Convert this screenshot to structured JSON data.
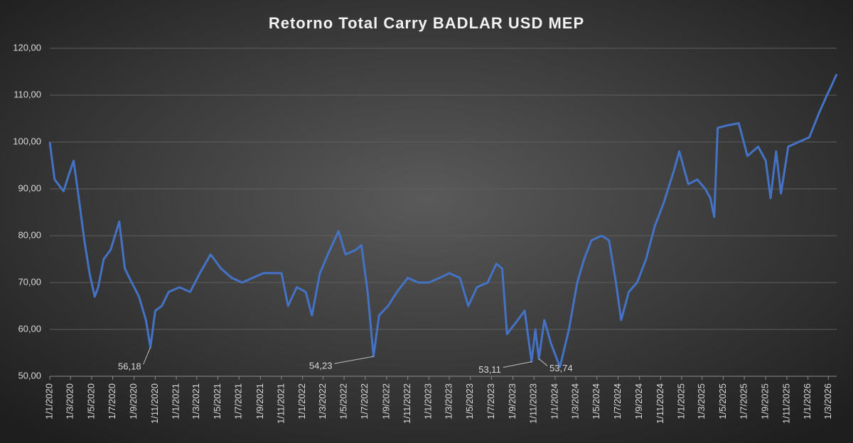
{
  "chart_data": {
    "type": "line",
    "title": "Retorno Total Carry BADLAR USD MEP",
    "x": [
      "2020-01-01",
      "2020-01-15",
      "2020-02-10",
      "2020-02-25",
      "2020-03-10",
      "2020-03-25",
      "2020-04-10",
      "2020-04-25",
      "2020-05-10",
      "2020-05-20",
      "2020-06-05",
      "2020-06-25",
      "2020-07-20",
      "2020-08-05",
      "2020-08-25",
      "2020-09-15",
      "2020-10-05",
      "2020-10-18",
      "2020-11-01",
      "2020-11-20",
      "2020-12-10",
      "2021-01-10",
      "2021-02-10",
      "2021-03-10",
      "2021-04-10",
      "2021-05-10",
      "2021-06-10",
      "2021-07-10",
      "2021-08-10",
      "2021-09-10",
      "2021-10-10",
      "2021-11-01",
      "2021-11-20",
      "2021-12-15",
      "2022-01-10",
      "2022-01-28",
      "2022-02-20",
      "2022-03-15",
      "2022-04-15",
      "2022-05-05",
      "2022-06-05",
      "2022-06-20",
      "2022-07-08",
      "2022-07-25",
      "2022-08-10",
      "2022-09-05",
      "2022-10-01",
      "2022-11-01",
      "2022-12-01",
      "2023-01-01",
      "2023-02-01",
      "2023-03-01",
      "2023-04-01",
      "2023-04-25",
      "2023-05-20",
      "2023-06-20",
      "2023-07-15",
      "2023-08-01",
      "2023-08-15",
      "2023-09-15",
      "2023-10-05",
      "2023-10-25",
      "2023-11-05",
      "2023-11-15",
      "2023-12-01",
      "2023-12-20",
      "2024-01-15",
      "2024-02-10",
      "2024-03-05",
      "2024-03-25",
      "2024-04-15",
      "2024-05-15",
      "2024-06-05",
      "2024-06-25",
      "2024-07-10",
      "2024-08-01",
      "2024-08-25",
      "2024-09-20",
      "2024-10-15",
      "2024-11-10",
      "2024-12-10",
      "2024-12-25",
      "2025-01-20",
      "2025-02-15",
      "2025-03-10",
      "2025-03-25",
      "2025-04-05",
      "2025-04-15",
      "2025-05-10",
      "2025-06-15",
      "2025-07-10",
      "2025-08-10",
      "2025-09-01",
      "2025-09-15",
      "2025-10-01",
      "2025-10-15",
      "2025-11-05",
      "2025-12-05",
      "2026-01-05",
      "2026-02-01",
      "2026-02-25",
      "2026-03-10",
      "2026-03-25"
    ],
    "series": [
      {
        "name": "Retorno Total Carry BADLAR USD MEP",
        "color": "#4472c4",
        "values": [
          100.0,
          92.0,
          89.5,
          93.0,
          96.0,
          88.0,
          79.0,
          72.0,
          67.0,
          69.0,
          75.0,
          77.0,
          83.0,
          73.0,
          70.0,
          67.0,
          62.0,
          56.18,
          64.0,
          65.0,
          68.0,
          69.0,
          68.0,
          72.0,
          76.0,
          73.0,
          71.0,
          70.0,
          71.0,
          72.0,
          72.0,
          72.0,
          65.0,
          69.0,
          68.0,
          63.0,
          72.0,
          76.0,
          81.0,
          76.0,
          77.0,
          78.0,
          68.0,
          54.23,
          63.0,
          65.0,
          68.0,
          71.0,
          70.0,
          70.0,
          71.0,
          72.0,
          71.0,
          65.0,
          69.0,
          70.0,
          74.0,
          73.0,
          59.0,
          62.0,
          64.0,
          53.11,
          60.0,
          53.74,
          62.0,
          57.0,
          52.0,
          60.0,
          70.0,
          75.0,
          79.0,
          80.0,
          79.0,
          70.0,
          62.0,
          68.0,
          70.0,
          75.0,
          82.0,
          87.0,
          94.0,
          98.0,
          91.0,
          92.0,
          90.0,
          88.0,
          84.0,
          103.0,
          103.5,
          104.0,
          97.0,
          99.0,
          96.0,
          88.0,
          98.0,
          89.0,
          99.0,
          100.0,
          101.0,
          106.0,
          110.0,
          112.0,
          114.5
        ]
      }
    ],
    "xlim": [
      "2020-01-01",
      "2026-03-25"
    ],
    "xticks": [
      {
        "value": "2020-01-01",
        "label": "1/1/2020"
      },
      {
        "value": "2020-03-01",
        "label": "1/3/2020"
      },
      {
        "value": "2020-05-01",
        "label": "1/5/2020"
      },
      {
        "value": "2020-07-01",
        "label": "1/7/2020"
      },
      {
        "value": "2020-09-01",
        "label": "1/9/2020"
      },
      {
        "value": "2020-11-01",
        "label": "1/11/2020"
      },
      {
        "value": "2021-01-01",
        "label": "1/1/2021"
      },
      {
        "value": "2021-03-01",
        "label": "1/3/2021"
      },
      {
        "value": "2021-05-01",
        "label": "1/5/2021"
      },
      {
        "value": "2021-07-01",
        "label": "1/7/2021"
      },
      {
        "value": "2021-09-01",
        "label": "1/9/2021"
      },
      {
        "value": "2021-11-01",
        "label": "1/11/2021"
      },
      {
        "value": "2022-01-01",
        "label": "1/1/2022"
      },
      {
        "value": "2022-03-01",
        "label": "1/3/2022"
      },
      {
        "value": "2022-05-01",
        "label": "1/5/2022"
      },
      {
        "value": "2022-07-01",
        "label": "1/7/2022"
      },
      {
        "value": "2022-09-01",
        "label": "1/9/2022"
      },
      {
        "value": "2022-11-01",
        "label": "1/11/2022"
      },
      {
        "value": "2023-01-01",
        "label": "1/1/2023"
      },
      {
        "value": "2023-03-01",
        "label": "1/3/2023"
      },
      {
        "value": "2023-05-01",
        "label": "1/5/2023"
      },
      {
        "value": "2023-07-01",
        "label": "1/7/2023"
      },
      {
        "value": "2023-09-01",
        "label": "1/9/2023"
      },
      {
        "value": "2023-11-01",
        "label": "1/11/2023"
      },
      {
        "value": "2024-01-01",
        "label": "1/1/2024"
      },
      {
        "value": "2024-03-01",
        "label": "1/3/2024"
      },
      {
        "value": "2024-05-01",
        "label": "1/5/2024"
      },
      {
        "value": "2024-07-01",
        "label": "1/7/2024"
      },
      {
        "value": "2024-09-01",
        "label": "1/9/2024"
      },
      {
        "value": "2024-11-01",
        "label": "1/11/2024"
      },
      {
        "value": "2025-01-01",
        "label": "1/1/2025"
      },
      {
        "value": "2025-03-01",
        "label": "1/3/2025"
      },
      {
        "value": "2025-05-01",
        "label": "1/5/2025"
      },
      {
        "value": "2025-07-01",
        "label": "1/7/2025"
      },
      {
        "value": "2025-09-01",
        "label": "1/9/2025"
      },
      {
        "value": "2025-11-01",
        "label": "1/11/2025"
      },
      {
        "value": "2026-01-01",
        "label": "1/1/2026"
      },
      {
        "value": "2026-03-01",
        "label": "1/3/2026"
      }
    ],
    "ylim": [
      50,
      120
    ],
    "yticks": [
      {
        "value": 50,
        "label": "50,00"
      },
      {
        "value": 60,
        "label": "60,00"
      },
      {
        "value": 70,
        "label": "70,00"
      },
      {
        "value": 80,
        "label": "80,00"
      },
      {
        "value": 90,
        "label": "90,00"
      },
      {
        "value": 100,
        "label": "100,00"
      },
      {
        "value": 110,
        "label": "110,00"
      },
      {
        "value": 120,
        "label": "120,00"
      }
    ],
    "grid": true,
    "annotations": [
      {
        "x": "2020-10-18",
        "value": 56.18,
        "label": "56,18"
      },
      {
        "x": "2022-07-25",
        "value": 54.23,
        "label": "54,23"
      },
      {
        "x": "2023-10-25",
        "value": 53.11,
        "label": "53,11"
      },
      {
        "x": "2023-11-15",
        "value": 53.74,
        "label": "53,74"
      }
    ]
  }
}
